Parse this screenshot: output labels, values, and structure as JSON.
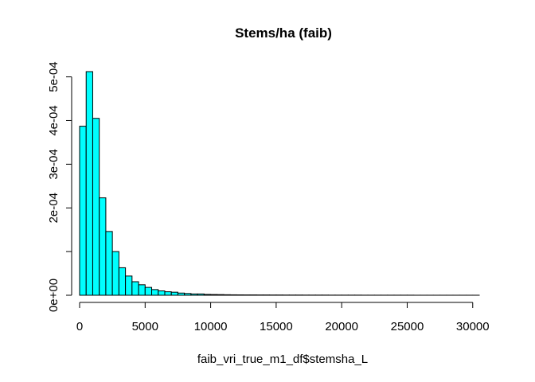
{
  "chart_data": {
    "type": "bar",
    "title": "Stems/ha (faib)",
    "xlabel": "faib_vri_true_m1_df$stemsha_L",
    "ylabel": "",
    "bin_width": 500,
    "bin_start": 0,
    "values": [
      0.000387,
      0.000512,
      0.000405,
      0.000223,
      0.000146,
      0.0001,
      6.3e-05,
      4.4e-05,
      3.1e-05,
      2.4e-05,
      1.8e-05,
      1.3e-05,
      1e-05,
      8e-06,
      7e-06,
      5e-06,
      4e-06,
      3e-06,
      3e-06,
      2e-06,
      1.7e-06,
      1.5e-06,
      1.2e-06,
      1e-06,
      9e-07,
      8e-07,
      8e-07,
      7e-07,
      7e-07,
      6e-07,
      6e-07,
      5e-07,
      5e-07,
      5e-07,
      4e-07,
      4e-07,
      4e-07,
      4e-07,
      3e-07,
      3e-07,
      3e-07,
      3e-07,
      3e-07,
      2e-07,
      2e-07,
      2e-07,
      2e-07,
      2e-07,
      2e-07,
      2e-07,
      2e-07,
      1e-07,
      1e-07,
      1e-07,
      1e-07,
      1e-07,
      1e-07,
      1e-07,
      1e-07,
      1e-07,
      1e-07
    ],
    "xlim": [
      0,
      30500
    ],
    "ylim": [
      0,
      0.000512
    ],
    "x_ticks": [
      0,
      5000,
      10000,
      15000,
      20000,
      25000,
      30000
    ],
    "x_tick_labels": [
      "0",
      "5000",
      "10000",
      "15000",
      "20000",
      "25000",
      "30000"
    ],
    "y_ticks": [
      0,
      0.0001,
      0.0002,
      0.0003,
      0.0004,
      0.0005
    ],
    "y_tick_labels": [
      "0e+00",
      "",
      "2e-04",
      "3e-04",
      "4e-04",
      "5e-04"
    ],
    "bar_color": "#00FFFF",
    "grid": false
  }
}
